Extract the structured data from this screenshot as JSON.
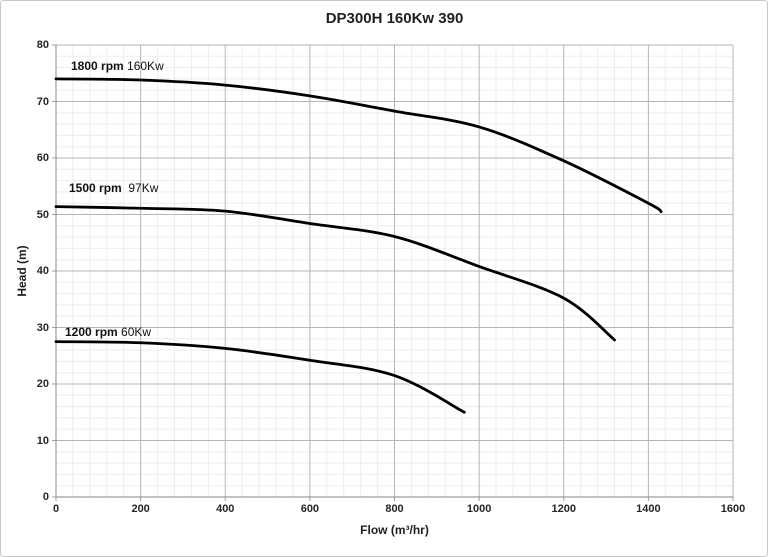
{
  "title": "DP300H 160Kw 390",
  "chart_data": {
    "type": "line",
    "title": "DP300H 160Kw 390",
    "xlabel": "Flow (m³/hr)",
    "ylabel": "Head (m)",
    "xlim": [
      0,
      1600
    ],
    "ylim": [
      0,
      80
    ],
    "x_major": 200,
    "x_minor": 40,
    "y_major": 10,
    "y_minor": 2,
    "x_ticks": [
      0,
      200,
      400,
      600,
      800,
      1000,
      1200,
      1400,
      1600
    ],
    "y_ticks": [
      0,
      10,
      20,
      30,
      40,
      50,
      60,
      70,
      80
    ],
    "grid": "major+minor",
    "legend_position": "inline-labels",
    "series": [
      {
        "name": "1800 rpm 160Kw",
        "label_bold": "1800 rpm",
        "label_rest": " 160Kw",
        "points": [
          [
            0,
            74
          ],
          [
            200,
            73.8
          ],
          [
            400,
            72.9
          ],
          [
            600,
            71.0
          ],
          [
            800,
            68.3
          ],
          [
            1000,
            65.5
          ],
          [
            1200,
            59.5
          ],
          [
            1400,
            52.0
          ],
          [
            1430,
            50.5
          ]
        ]
      },
      {
        "name": "1500 rpm 97Kw",
        "label_bold": "1500 rpm",
        "label_rest": "  97Kw",
        "points": [
          [
            0,
            51.4
          ],
          [
            200,
            51.1
          ],
          [
            400,
            50.6
          ],
          [
            600,
            48.4
          ],
          [
            800,
            46.1
          ],
          [
            1000,
            40.8
          ],
          [
            1200,
            35.2
          ],
          [
            1320,
            27.8
          ]
        ]
      },
      {
        "name": "1200 rpm 60Kw",
        "label_bold": "1200 rpm",
        "label_rest": " 60Kw",
        "points": [
          [
            0,
            27.5
          ],
          [
            200,
            27.3
          ],
          [
            400,
            26.3
          ],
          [
            600,
            24.2
          ],
          [
            800,
            21.5
          ],
          [
            965,
            15.0
          ]
        ]
      }
    ]
  },
  "colors": {
    "curve": "#000000",
    "major_grid": "#b5b5b5",
    "minor_grid": "#ededed",
    "axis": "#9d9d9d",
    "text": "#1f1f1f",
    "frame": "#c9c9c9"
  }
}
